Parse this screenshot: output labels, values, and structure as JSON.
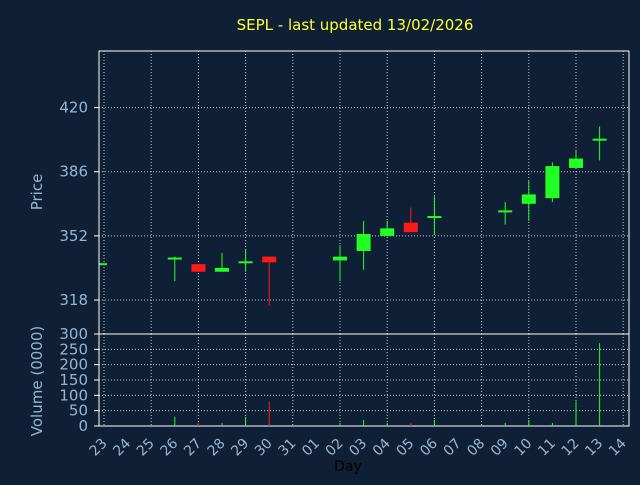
{
  "chart_data": {
    "type": "candlestick",
    "title": "SEPL - last updated 13/02/2026",
    "xlabel": "Day",
    "ylabel_price": "Price",
    "ylabel_volume": "Volume (0000)",
    "price_ticks": [
      "420",
      "386",
      "352",
      "318"
    ],
    "price_ylim": [
      300,
      450
    ],
    "volume_ticks": [
      "300",
      "250",
      "200",
      "150",
      "100",
      "50",
      "0"
    ],
    "volume_ylim": [
      0,
      300
    ],
    "grid": true,
    "x_labels": [
      "23",
      "24",
      "25",
      "26",
      "27",
      "28",
      "29",
      "30",
      "31",
      "01",
      "02",
      "03",
      "04",
      "05",
      "06",
      "07",
      "08",
      "09",
      "10",
      "11",
      "12",
      "13",
      "14"
    ],
    "colors": {
      "background": "#0f2036",
      "grid": "#c8c8c8",
      "text": "#9ab4d2",
      "title": "#ffff33",
      "up": "#22ff22",
      "down": "#ff1a1a",
      "axis": "#ffffff"
    },
    "candles": [
      {
        "x": 0,
        "open": 337,
        "close": 337,
        "high": 337,
        "low": 337,
        "volume": 0
      },
      {
        "x": 3,
        "open": 340,
        "close": 340,
        "high": 341,
        "low": 328,
        "volume": 30
      },
      {
        "x": 4,
        "open": 337,
        "close": 333,
        "high": 337,
        "low": 333,
        "volume": 10
      },
      {
        "x": 5,
        "open": 333,
        "close": 335,
        "high": 343,
        "low": 333,
        "volume": 10
      },
      {
        "x": 6,
        "open": 338,
        "close": 338,
        "high": 345,
        "low": 333,
        "volume": 30
      },
      {
        "x": 7,
        "open": 341,
        "close": 338,
        "high": 341,
        "low": 315,
        "volume": 80
      },
      {
        "x": 10,
        "open": 339,
        "close": 341,
        "high": 347,
        "low": 328,
        "volume": 10
      },
      {
        "x": 11,
        "open": 344,
        "close": 353,
        "high": 360,
        "low": 334,
        "volume": 20
      },
      {
        "x": 12,
        "open": 352,
        "close": 356,
        "high": 360,
        "low": 352,
        "volume": 10
      },
      {
        "x": 13,
        "open": 359,
        "close": 354,
        "high": 367,
        "low": 354,
        "volume": 10
      },
      {
        "x": 14,
        "open": 362,
        "close": 362,
        "high": 373,
        "low": 353,
        "volume": 20
      },
      {
        "x": 17,
        "open": 365,
        "close": 365,
        "high": 370,
        "low": 358,
        "volume": 10
      },
      {
        "x": 18,
        "open": 369,
        "close": 374,
        "high": 381,
        "low": 360,
        "volume": 20
      },
      {
        "x": 19,
        "open": 372,
        "close": 389,
        "high": 391,
        "low": 370,
        "volume": 10
      },
      {
        "x": 20,
        "open": 388,
        "close": 393,
        "high": 397,
        "low": 388,
        "volume": 80
      },
      {
        "x": 21,
        "open": 403,
        "close": 403,
        "high": 410,
        "low": 392,
        "volume": 270
      }
    ]
  }
}
